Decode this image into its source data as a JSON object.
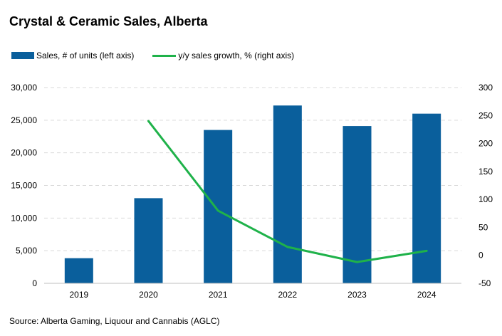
{
  "chart_data": {
    "type": "bar",
    "title": "Crystal & Ceramic Sales, Alberta",
    "categories": [
      "2019",
      "2020",
      "2021",
      "2022",
      "2023",
      "2024"
    ],
    "series": [
      {
        "name": "Sales, # of units (left axis)",
        "type": "bar",
        "axis": "left",
        "color": "#0a5f9c",
        "values": [
          3850,
          13050,
          23500,
          27250,
          24100,
          26000
        ]
      },
      {
        "name": "y/y sales growth, % (right axis)",
        "type": "line",
        "axis": "right",
        "color": "#1fb24a",
        "values": [
          null,
          240,
          80,
          15,
          -12,
          8
        ]
      }
    ],
    "ylim_left": [
      0,
      30000
    ],
    "yticks_left": [
      "0",
      "5,000",
      "10,000",
      "15,000",
      "20,000",
      "25,000",
      "30,000"
    ],
    "ylim_right": [
      -50,
      300
    ],
    "yticks_right": [
      "-50",
      "0",
      "50",
      "100",
      "150",
      "200",
      "250",
      "300"
    ],
    "grid": true,
    "legend_position": "top-left",
    "source": "Source: Alberta Gaming, Liquour and Cannabis (AGLC)"
  }
}
